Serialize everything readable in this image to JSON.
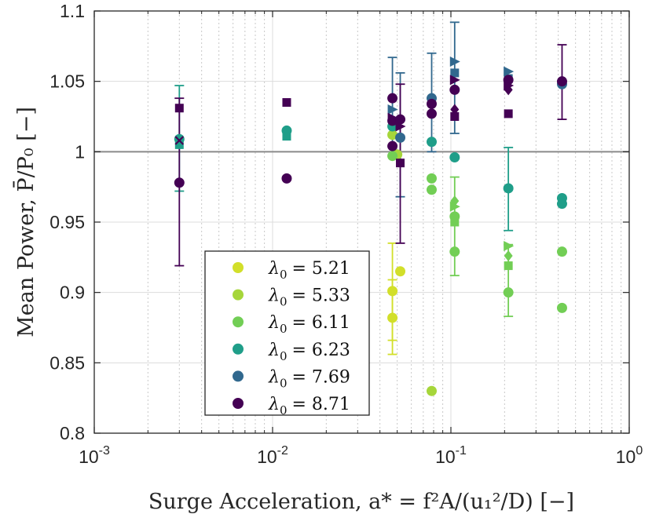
{
  "chart_data": {
    "type": "scatter",
    "xscale": "log",
    "xlim": [
      0.001,
      1
    ],
    "ylim": [
      0.8,
      1.1
    ],
    "xlabel": "Surge Acceleration, a* = f²A/(u₁²/D) [−]",
    "ylabel": "Mean Power, P̄/P₀ [−]",
    "x_ticks": [
      0.001,
      0.01,
      0.1,
      1
    ],
    "x_tick_labels": [
      {
        "base": "10",
        "exp": "-3"
      },
      {
        "base": "10",
        "exp": "-2"
      },
      {
        "base": "10",
        "exp": "-1"
      },
      {
        "base": "10",
        "exp": "0"
      }
    ],
    "y_ticks": [
      0.8,
      0.85,
      0.9,
      0.95,
      1,
      1.05,
      1.1
    ],
    "y_tick_labels": [
      "0.8",
      "0.85",
      "0.9",
      "0.95",
      "1",
      "1.05",
      "1.1"
    ],
    "reference_line": 1,
    "grid": true,
    "legend_position": "bottom-left",
    "series": [
      {
        "name": "λ0 = 5.21",
        "label_sym": "λ",
        "label_sub": "0",
        "label_val": "= 5.21",
        "color": "#d2df2a",
        "points": [
          {
            "x": 0.047,
            "y": 0.901,
            "m": "circle",
            "err": [
              0.866,
              0.935
            ]
          },
          {
            "x": 0.047,
            "y": 0.882,
            "m": "circle",
            "err": [
              0.856,
              0.909
            ]
          },
          {
            "x": 0.052,
            "y": 0.915,
            "m": "circle"
          }
        ]
      },
      {
        "name": "λ0 = 5.33",
        "label_sym": "λ",
        "label_sub": "0",
        "label_val": "= 5.33",
        "color": "#a6d63a",
        "points": [
          {
            "x": 0.047,
            "y": 1.012,
            "m": "circle"
          },
          {
            "x": 0.05,
            "y": 0.998,
            "m": "circle"
          },
          {
            "x": 0.078,
            "y": 0.83,
            "m": "circle"
          }
        ]
      },
      {
        "name": "λ0 = 6.11",
        "label_sym": "λ",
        "label_sub": "0",
        "label_val": "= 6.11",
        "color": "#72ce55",
        "points": [
          {
            "x": 0.047,
            "y": 0.997,
            "m": "circle"
          },
          {
            "x": 0.078,
            "y": 0.981,
            "m": "circle"
          },
          {
            "x": 0.078,
            "y": 0.973,
            "m": "circle"
          },
          {
            "x": 0.105,
            "y": 0.965,
            "m": "diamond",
            "err": [
              0.912,
              0.982
            ]
          },
          {
            "x": 0.105,
            "y": 0.961,
            "m": "triangle"
          },
          {
            "x": 0.105,
            "y": 0.954,
            "m": "circle"
          },
          {
            "x": 0.105,
            "y": 0.95,
            "m": "square"
          },
          {
            "x": 0.105,
            "y": 0.929,
            "m": "circle"
          },
          {
            "x": 0.21,
            "y": 0.933,
            "m": "triangle",
            "err": [
              0.883,
              0.934
            ]
          },
          {
            "x": 0.21,
            "y": 0.926,
            "m": "diamond"
          },
          {
            "x": 0.21,
            "y": 0.919,
            "m": "square"
          },
          {
            "x": 0.21,
            "y": 0.9,
            "m": "circle"
          },
          {
            "x": 0.42,
            "y": 0.929,
            "m": "circle"
          },
          {
            "x": 0.42,
            "y": 0.889,
            "m": "circle"
          }
        ]
      },
      {
        "name": "λ0 = 6.23",
        "label_sym": "λ",
        "label_sub": "0",
        "label_val": "= 6.23",
        "color": "#1f9e89",
        "points": [
          {
            "x": 0.003,
            "y": 1.009,
            "m": "circle",
            "err": [
              0.972,
              1.047
            ]
          },
          {
            "x": 0.003,
            "y": 1.005,
            "m": "square"
          },
          {
            "x": 0.012,
            "y": 1.015,
            "m": "circle"
          },
          {
            "x": 0.012,
            "y": 1.011,
            "m": "square"
          },
          {
            "x": 0.047,
            "y": 1.018,
            "m": "circle"
          },
          {
            "x": 0.078,
            "y": 1.007,
            "m": "circle"
          },
          {
            "x": 0.105,
            "y": 0.996,
            "m": "circle"
          },
          {
            "x": 0.21,
            "y": 0.974,
            "m": "circle",
            "err": [
              0.944,
              1.003
            ]
          },
          {
            "x": 0.42,
            "y": 0.967,
            "m": "circle"
          },
          {
            "x": 0.42,
            "y": 0.963,
            "m": "circle"
          }
        ]
      },
      {
        "name": "λ0 = 7.69",
        "label_sym": "λ",
        "label_sub": "0",
        "label_val": "= 7.69",
        "color": "#31688e",
        "points": [
          {
            "x": 0.047,
            "y": 1.03,
            "m": "triangle",
            "err": [
              0.997,
              1.067
            ]
          },
          {
            "x": 0.052,
            "y": 1.01,
            "m": "circle",
            "err": [
              0.968,
              1.056
            ]
          },
          {
            "x": 0.078,
            "y": 1.038,
            "m": "circle",
            "err": [
              1.0,
              1.07
            ]
          },
          {
            "x": 0.105,
            "y": 1.064,
            "m": "triangle",
            "err": [
              1.013,
              1.092
            ]
          },
          {
            "x": 0.105,
            "y": 1.056,
            "m": "square"
          },
          {
            "x": 0.21,
            "y": 1.057,
            "m": "triangle"
          },
          {
            "x": 0.21,
            "y": 1.052,
            "m": "square"
          },
          {
            "x": 0.42,
            "y": 1.048,
            "m": "circle"
          }
        ]
      },
      {
        "name": "λ0 = 8.71",
        "label_sym": "λ",
        "label_sub": "0",
        "label_val": "= 8.71",
        "color": "#440154",
        "points": [
          {
            "x": 0.003,
            "y": 1.031,
            "m": "square",
            "err": [
              0.919,
              1.038
            ]
          },
          {
            "x": 0.003,
            "y": 1.008,
            "m": "cross"
          },
          {
            "x": 0.003,
            "y": 0.978,
            "m": "circle"
          },
          {
            "x": 0.012,
            "y": 1.035,
            "m": "square"
          },
          {
            "x": 0.012,
            "y": 0.981,
            "m": "circle"
          },
          {
            "x": 0.047,
            "y": 1.038,
            "m": "circle"
          },
          {
            "x": 0.047,
            "y": 1.024,
            "m": "triangle"
          },
          {
            "x": 0.047,
            "y": 1.022,
            "m": "circle"
          },
          {
            "x": 0.047,
            "y": 1.004,
            "m": "circle"
          },
          {
            "x": 0.052,
            "y": 1.023,
            "m": "circle",
            "err": [
              0.935,
              1.048
            ]
          },
          {
            "x": 0.052,
            "y": 1.018,
            "m": "triangle"
          },
          {
            "x": 0.052,
            "y": 0.992,
            "m": "square"
          },
          {
            "x": 0.078,
            "y": 1.034,
            "m": "circle"
          },
          {
            "x": 0.078,
            "y": 1.027,
            "m": "circle"
          },
          {
            "x": 0.105,
            "y": 1.051,
            "m": "triangle"
          },
          {
            "x": 0.105,
            "y": 1.044,
            "m": "circle"
          },
          {
            "x": 0.105,
            "y": 1.03,
            "m": "diamond"
          },
          {
            "x": 0.105,
            "y": 1.025,
            "m": "square"
          },
          {
            "x": 0.21,
            "y": 1.051,
            "m": "circle"
          },
          {
            "x": 0.21,
            "y": 1.047,
            "m": "triangle"
          },
          {
            "x": 0.21,
            "y": 1.044,
            "m": "diamond"
          },
          {
            "x": 0.21,
            "y": 1.027,
            "m": "square"
          },
          {
            "x": 0.42,
            "y": 1.05,
            "m": "circle",
            "err": [
              1.023,
              1.076
            ]
          }
        ]
      }
    ]
  }
}
